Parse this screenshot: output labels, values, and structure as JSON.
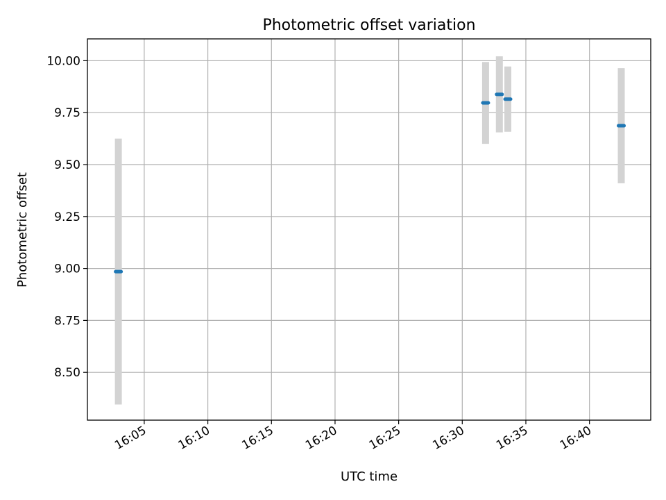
{
  "chart_data": {
    "type": "scatter",
    "title": "Photometric offset variation",
    "xlabel": "UTC time",
    "ylabel": "Photometric offset",
    "x_ticks": [
      "16:05",
      "16:10",
      "16:15",
      "16:20",
      "16:25",
      "16:30",
      "16:35",
      "16:40"
    ],
    "y_ticks": [
      "8.50",
      "8.75",
      "9.00",
      "9.25",
      "9.50",
      "9.75",
      "10.00"
    ],
    "x_range": [
      "16:00:32",
      "16:44:49"
    ],
    "ylim": [
      8.27,
      10.105
    ],
    "grid": true,
    "series": [
      {
        "color": "#1f77b4",
        "error_bar_color": "#d3d3d3",
        "points": [
          {
            "time": "16:02:58",
            "y": 8.985,
            "err": 0.64
          },
          {
            "time": "16:31:50",
            "y": 9.797,
            "err": 0.197
          },
          {
            "time": "16:32:55",
            "y": 9.838,
            "err": 0.183
          },
          {
            "time": "16:33:35",
            "y": 9.815,
            "err": 0.157
          },
          {
            "time": "16:42:30",
            "y": 9.687,
            "err": 0.277
          }
        ]
      }
    ]
  }
}
